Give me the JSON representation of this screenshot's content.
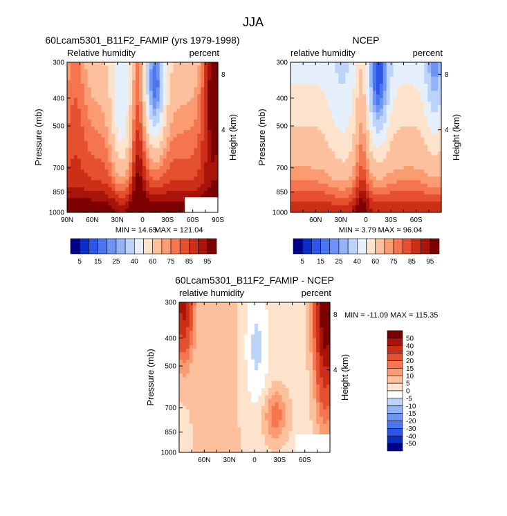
{
  "figure": {
    "title": "JJA"
  },
  "chart_data": [
    {
      "type": "heatmap",
      "id": "model",
      "title": "60Lcam5301_B11F2_FAMIP (yrs 1979-1998)",
      "subtitle_left": "Relative humidity",
      "subtitle_right": "percent",
      "ylabel": "Pressure (mb)",
      "y2label": "Height (km)",
      "xtick_labels": [
        "90N",
        "60N",
        "30N",
        "0",
        "30S",
        "60S",
        "90S"
      ],
      "xticks": [
        90,
        60,
        30,
        0,
        -30,
        -60,
        -90
      ],
      "xlim": [
        90,
        -90
      ],
      "yticks": [
        300,
        400,
        500,
        700,
        850,
        1000
      ],
      "ylim": [
        300,
        1000
      ],
      "y2ticks": [
        "8",
        "4"
      ],
      "min_label": "MIN =  14.65",
      "max_label": "MAX = 121.04",
      "colorbar": {
        "labels": [
          "5",
          "15",
          "25",
          "40",
          "60",
          "75",
          "85",
          "95"
        ],
        "levels": [
          5,
          10,
          15,
          20,
          25,
          30,
          40,
          50,
          60,
          70,
          75,
          80,
          85,
          90,
          95
        ],
        "colors": [
          "#00008c",
          "#0a2dc8",
          "#2d55e6",
          "#4a76f0",
          "#6d93f4",
          "#93b3f7",
          "#bcd3fa",
          "#e6f0fc",
          "#fde2cc",
          "#fcc09c",
          "#fa9b72",
          "#f47550",
          "#e5502f",
          "#cc2e17",
          "#a8130a",
          "#7d0000"
        ]
      }
    },
    {
      "type": "heatmap",
      "id": "obs",
      "title": "NCEP",
      "subtitle_left": "relative humidity",
      "subtitle_right": "percent",
      "ylabel": "Pressure (mb)",
      "y2label": "Height (km)",
      "xtick_labels": [
        "60N",
        "30N",
        "0",
        "30S",
        "60S"
      ],
      "xticks": [
        60,
        30,
        0,
        -30,
        -60
      ],
      "xlim": [
        90,
        -90
      ],
      "yticks": [
        300,
        400,
        500,
        700,
        850,
        1000
      ],
      "ylim": [
        300,
        1000
      ],
      "y2ticks": [
        "8",
        "4"
      ],
      "min_label": "MIN =   3.79",
      "max_label": "MAX =  96.04",
      "colorbar": {
        "labels": [
          "5",
          "15",
          "25",
          "40",
          "60",
          "75",
          "85",
          "95"
        ],
        "levels": [
          5,
          10,
          15,
          20,
          25,
          30,
          40,
          50,
          60,
          70,
          75,
          80,
          85,
          90,
          95
        ],
        "colors": [
          "#00008c",
          "#0a2dc8",
          "#2d55e6",
          "#4a76f0",
          "#6d93f4",
          "#93b3f7",
          "#bcd3fa",
          "#e6f0fc",
          "#fde2cc",
          "#fcc09c",
          "#fa9b72",
          "#f47550",
          "#e5502f",
          "#cc2e17",
          "#a8130a",
          "#7d0000"
        ]
      }
    },
    {
      "type": "heatmap",
      "id": "diff",
      "title": "60Lcam5301_B11F2_FAMIP - NCEP",
      "subtitle_left": "relative humidity",
      "subtitle_right": "percent",
      "ylabel": "Pressure (mb)",
      "y2label": "Height (km)",
      "xtick_labels": [
        "60N",
        "30N",
        "0",
        "30S",
        "60S"
      ],
      "xticks": [
        60,
        30,
        0,
        -30,
        -60
      ],
      "xlim": [
        90,
        -90
      ],
      "yticks": [
        300,
        400,
        500,
        700,
        850,
        1000
      ],
      "ylim": [
        300,
        1000
      ],
      "y2ticks": [
        "8",
        "4"
      ],
      "stats_label": "MIN = -11.09   MAX = 115.35",
      "colorbar": {
        "labels": [
          "50",
          "40",
          "30",
          "20",
          "15",
          "10",
          "5",
          "0",
          "-5",
          "-10",
          "-15",
          "-20",
          "-30",
          "-40",
          "-50"
        ],
        "colors": [
          "#7d0000",
          "#a8130a",
          "#cc2e17",
          "#e5502f",
          "#f47550",
          "#fa9b72",
          "#fcc09c",
          "#fde2cc",
          "#ffffff",
          "#bcd3fa",
          "#93b3f7",
          "#6d93f4",
          "#4a76f0",
          "#2d55e6",
          "#0a2dc8",
          "#00008c"
        ]
      }
    }
  ]
}
